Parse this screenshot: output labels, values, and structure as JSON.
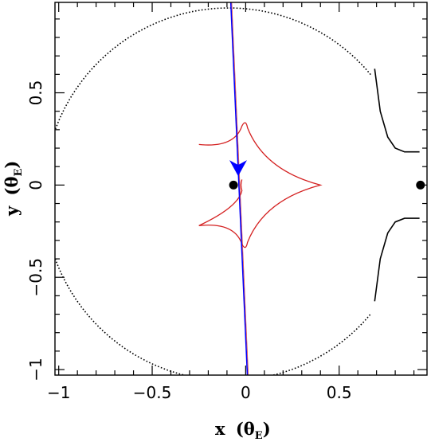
{
  "chart_data": {
    "type": "scatter",
    "title": "",
    "xlabel": "x",
    "ylabel": "y",
    "axis_unit": "θ",
    "axis_unit_sub": "E",
    "xlim": [
      -1.02,
      0.97
    ],
    "ylim": [
      -1.03,
      0.99
    ],
    "x_ticks": [
      {
        "value": -1,
        "label": "−1"
      },
      {
        "value": -0.5,
        "label": "−0.5"
      },
      {
        "value": 0,
        "label": "0"
      },
      {
        "value": 0.5,
        "label": "0.5"
      }
    ],
    "y_ticks": [
      {
        "value": -1,
        "label": "−1"
      },
      {
        "value": -0.5,
        "label": "−0.5"
      },
      {
        "value": 0,
        "label": "0"
      },
      {
        "value": 0.5,
        "label": "0.5"
      }
    ],
    "lens_points": [
      {
        "x": -0.065,
        "y": 0.0
      },
      {
        "x": 0.935,
        "y": 0.0
      }
    ],
    "critical_curve": {
      "style": "dotted",
      "color": "#000000",
      "circle_center": [
        -0.09,
        -0.05
      ],
      "circle_radius": 0.99,
      "right_branch": [
        [
          0.69,
          0.63
        ],
        [
          0.72,
          0.4
        ],
        [
          0.76,
          0.26
        ],
        [
          0.8,
          0.2
        ],
        [
          0.85,
          0.18
        ],
        [
          0.89,
          0.18
        ],
        [
          0.93,
          0.18
        ]
      ]
    },
    "caustic": {
      "color": "#d42020",
      "cusps": [
        [
          -0.25,
          0.22
        ],
        [
          -0.02,
          0.34
        ],
        [
          0.0,
          0.31
        ],
        [
          0.4,
          0.0
        ],
        [
          0.0,
          -0.31
        ],
        [
          -0.02,
          -0.34
        ],
        [
          -0.25,
          -0.22
        ],
        [
          -0.02,
          -0.04
        ],
        [
          -0.02,
          0.04
        ]
      ]
    },
    "source_trajectory": {
      "color": "#0000ff",
      "start": [
        -0.08,
        1.0
      ],
      "end": [
        0.01,
        -1.05
      ],
      "arrow_at": [
        -0.04,
        0.04
      ]
    },
    "grid": false,
    "legend": "none"
  }
}
